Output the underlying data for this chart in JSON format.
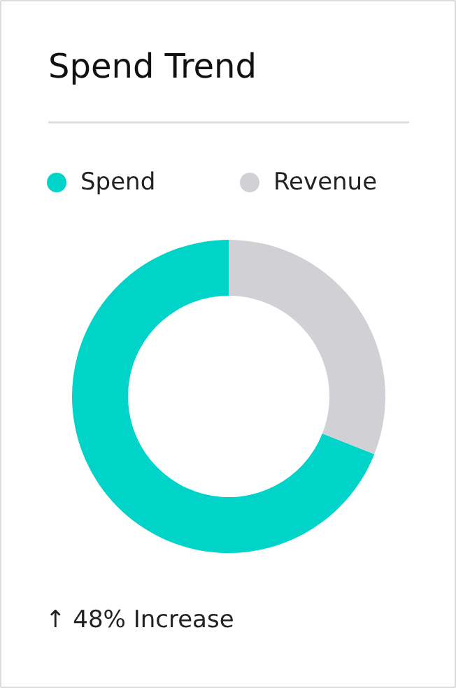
{
  "chart_data": {
    "type": "donut",
    "title": "Spend Trend",
    "categories": [
      "Spend",
      "Revenue"
    ],
    "values": [
      69,
      31
    ],
    "colors": [
      "#00d4c8",
      "#d1d0d4"
    ],
    "legend": "top",
    "annotations": [
      "↑ 48% Increase"
    ]
  }
}
